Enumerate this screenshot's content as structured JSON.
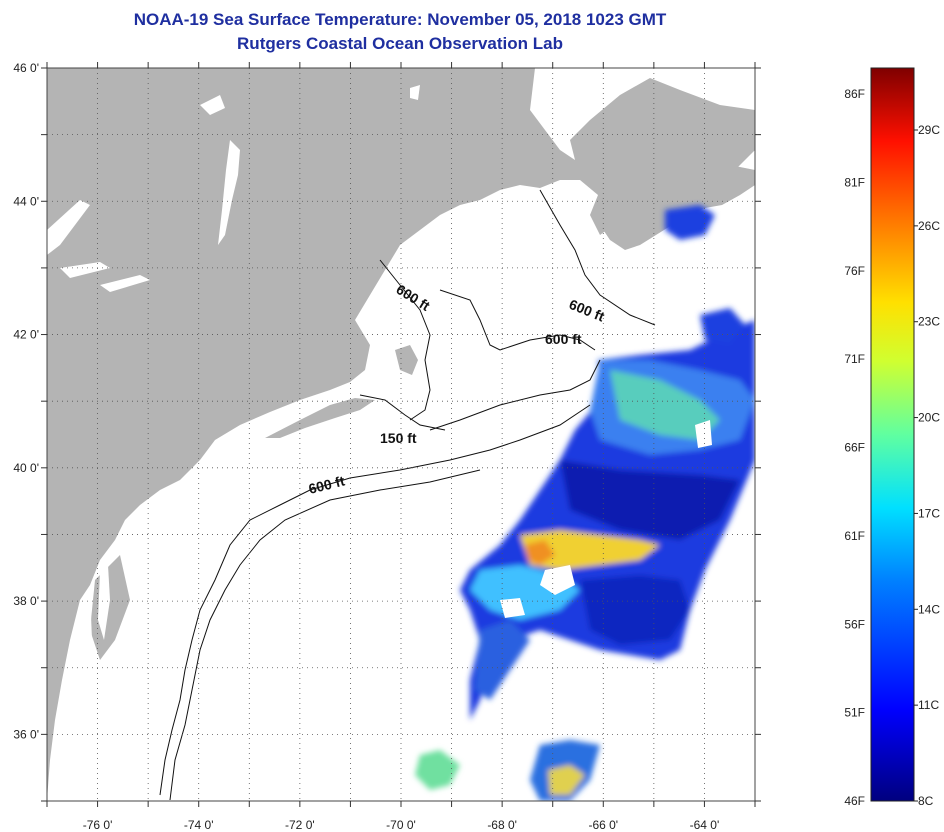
{
  "header": {
    "title": "NOAA-19 Sea Surface Temperature:  November 05, 2018 1023 GMT",
    "subtitle": "Rutgers Coastal Ocean Observation Lab"
  },
  "map": {
    "lon_labels": [
      {
        "lon": -76,
        "label": "-76 0'"
      },
      {
        "lon": -74,
        "label": "-74 0'"
      },
      {
        "lon": -72,
        "label": "-72 0'"
      },
      {
        "lon": -70,
        "label": "-70 0'"
      },
      {
        "lon": -68,
        "label": "-68 0'"
      },
      {
        "lon": -66,
        "label": "-66 0'"
      },
      {
        "lon": -64,
        "label": "-64 0'"
      }
    ],
    "lat_labels": [
      {
        "lat": 46,
        "label": "46 0'"
      },
      {
        "lat": 44,
        "label": "44 0'"
      },
      {
        "lat": 42,
        "label": "42 0'"
      },
      {
        "lat": 40,
        "label": "40 0'"
      },
      {
        "lat": 38,
        "label": "38 0'"
      },
      {
        "lat": 36,
        "label": "36 0'"
      }
    ],
    "lon_range": [
      -77,
      -63
    ],
    "lat_range": [
      35,
      46
    ],
    "grid": "dotted",
    "land_color": "#b4b4b4",
    "ocean_color": "#ffffff",
    "contour_labels": [
      "600 ft",
      "600 ft",
      "600 ft",
      "150 ft",
      "600 ft"
    ]
  },
  "colorbar": {
    "fahrenheit_labels": [
      "86F",
      "81F",
      "76F",
      "71F",
      "66F",
      "61F",
      "56F",
      "51F",
      "46F"
    ],
    "celsius_labels": [
      "29C",
      "26C",
      "23C",
      "20C",
      "17C",
      "14C",
      "11C",
      "8C"
    ],
    "colors": [
      "#7f0000",
      "#ff0000",
      "#ff8000",
      "#ffff00",
      "#80ff80",
      "#00ffff",
      "#0080ff",
      "#0000ff",
      "#00007f"
    ]
  }
}
